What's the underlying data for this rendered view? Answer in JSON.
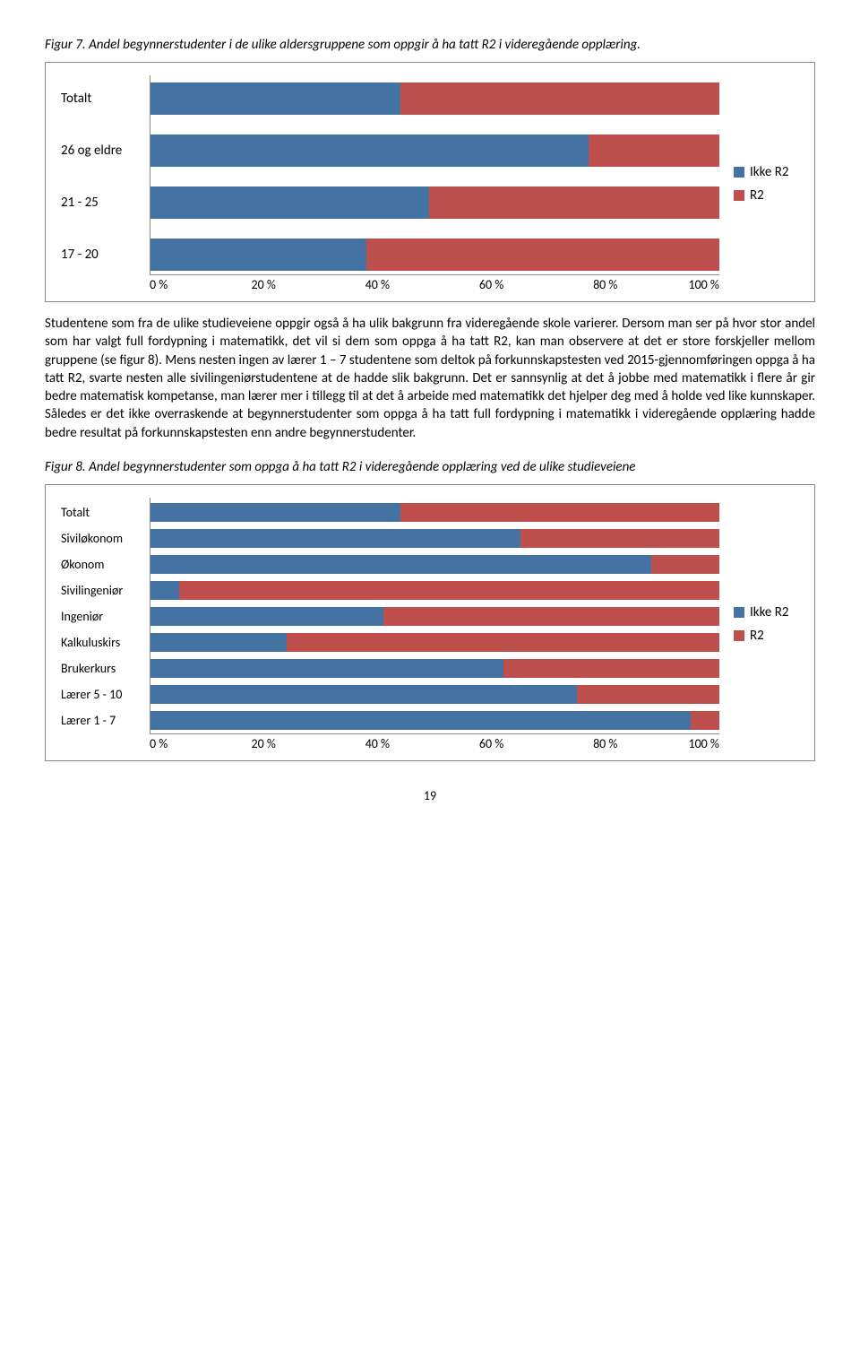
{
  "colors": {
    "ikke_r2": "#4473a3",
    "r2": "#bd504d",
    "axis": "#888888",
    "text": "#000000",
    "background": "#ffffff"
  },
  "figure7": {
    "title": "Figur 7. Andel begynnerstudenter i de ulike aldersgruppene som oppgir å ha tatt R2 i videregående opplæring.",
    "type": "stacked-bar-horizontal",
    "xlim": [
      0,
      100
    ],
    "xticks": [
      "0 %",
      "20 %",
      "40 %",
      "60 %",
      "80 %",
      "100 %"
    ],
    "legend": [
      {
        "label": "Ikke R2",
        "color": "#4473a3"
      },
      {
        "label": "R2",
        "color": "#bd504d"
      }
    ],
    "rows": [
      {
        "label": "Totalt",
        "ikke_r2": 44,
        "r2": 56
      },
      {
        "label": "26 og eldre",
        "ikke_r2": 77,
        "r2": 23
      },
      {
        "label": "21 - 25",
        "ikke_r2": 49,
        "r2": 51
      },
      {
        "label": "17 - 20",
        "ikke_r2": 38,
        "r2": 62
      }
    ]
  },
  "paragraph1": "Studentene som fra de ulike studieveiene oppgir også å ha ulik bakgrunn fra videregående skole varierer. Dersom man ser på hvor stor andel som har valgt full fordypning i matematikk, det vil si dem som oppga å ha tatt R2, kan man observere at det er store forskjeller mellom gruppene (se figur 8). Mens nesten ingen av lærer 1 – 7 studentene som deltok på forkunnskapstesten ved 2015-gjennomføringen oppga å ha tatt R2, svarte nesten alle sivilingeniørstudentene at de hadde slik bakgrunn. Det er sannsynlig at det å jobbe med matematikk i flere år gir bedre matematisk kompetanse, man lærer mer i tillegg til at det å arbeide med matematikk det hjelper deg med å holde ved like kunnskaper. Således er det ikke overraskende at begynnerstudenter som oppga å ha tatt full fordypning i matematikk i videregående opplæring hadde bedre resultat på forkunnskapstesten enn andre begynnerstudenter.",
  "figure8": {
    "title": "Figur 8. Andel begynnerstudenter som oppga å ha tatt R2 i videregående opplæring ved de ulike studieveiene",
    "type": "stacked-bar-horizontal",
    "xlim": [
      0,
      100
    ],
    "xticks": [
      "0 %",
      "20 %",
      "40 %",
      "60 %",
      "80 %",
      "100 %"
    ],
    "legend": [
      {
        "label": "Ikke R2",
        "color": "#4473a3"
      },
      {
        "label": "R2",
        "color": "#bd504d"
      }
    ],
    "rows": [
      {
        "label": "Totalt",
        "ikke_r2": 44,
        "r2": 56
      },
      {
        "label": "Siviløkonom",
        "ikke_r2": 65,
        "r2": 35
      },
      {
        "label": "Økonom",
        "ikke_r2": 88,
        "r2": 12
      },
      {
        "label": "Sivilingeniør",
        "ikke_r2": 5,
        "r2": 95
      },
      {
        "label": "Ingeniør",
        "ikke_r2": 41,
        "r2": 59
      },
      {
        "label": "Kalkuluskirs",
        "ikke_r2": 24,
        "r2": 76
      },
      {
        "label": "Brukerkurs",
        "ikke_r2": 62,
        "r2": 38
      },
      {
        "label": "Lærer 5 - 10",
        "ikke_r2": 75,
        "r2": 25
      },
      {
        "label": "Lærer 1 - 7",
        "ikke_r2": 95,
        "r2": 5
      }
    ]
  },
  "page_number": "19"
}
